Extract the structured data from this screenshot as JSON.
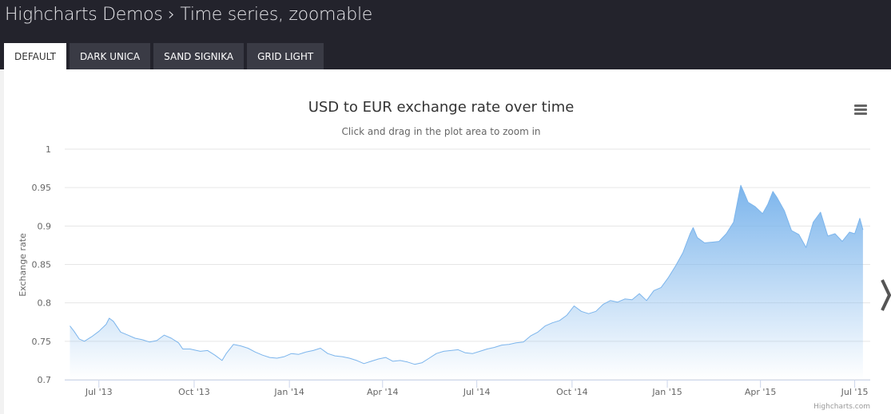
{
  "page": {
    "title": "Highcharts Demos › Time series, zoomable",
    "tabs": [
      {
        "label": "DEFAULT",
        "active": true
      },
      {
        "label": "DARK UNICA",
        "active": false
      },
      {
        "label": "SAND SIGNIKA",
        "active": false
      },
      {
        "label": "GRID LIGHT",
        "active": false
      }
    ],
    "menu_icon": "hamburger-menu-icon",
    "next_icon": "chevron-right-icon",
    "credits": "Highcharts.com",
    "colors": {
      "header_bg": "#23232c",
      "tab_bg": "#3a3b45",
      "series": "#7cb5ec",
      "grid": "#e6e6e6"
    }
  },
  "chart_data": {
    "type": "area",
    "title": "USD to EUR exchange rate over time",
    "subtitle": "Click and drag in the plot area to zoom in",
    "xlabel": "",
    "ylabel": "Exchange rate",
    "ylim": [
      0.7,
      1
    ],
    "yticks": [
      "0.7",
      "0.75",
      "0.8",
      "0.85",
      "0.9",
      "0.95",
      "1"
    ],
    "xlim": [
      "2013-05-29",
      "2015-07-16"
    ],
    "xticks": [
      {
        "date": "2013-07-01",
        "label": "Jul '13"
      },
      {
        "date": "2013-10-01",
        "label": "Oct '13"
      },
      {
        "date": "2014-01-01",
        "label": "Jan '14"
      },
      {
        "date": "2014-04-01",
        "label": "Apr '14"
      },
      {
        "date": "2014-07-01",
        "label": "Jul '14"
      },
      {
        "date": "2014-10-01",
        "label": "Oct '14"
      },
      {
        "date": "2015-01-01",
        "label": "Jan '15"
      },
      {
        "date": "2015-04-01",
        "label": "Apr '15"
      },
      {
        "date": "2015-07-01",
        "label": "Jul '15"
      }
    ],
    "grid": true,
    "legend": false,
    "series": [
      {
        "points": [
          [
            "2013-06-03",
            0.77
          ],
          [
            "2013-06-07",
            0.763
          ],
          [
            "2013-06-12",
            0.753
          ],
          [
            "2013-06-17",
            0.75
          ],
          [
            "2013-06-24",
            0.756
          ],
          [
            "2013-07-01",
            0.763
          ],
          [
            "2013-07-08",
            0.772
          ],
          [
            "2013-07-11",
            0.78
          ],
          [
            "2013-07-15",
            0.776
          ],
          [
            "2013-07-22",
            0.762
          ],
          [
            "2013-07-29",
            0.758
          ],
          [
            "2013-08-05",
            0.754
          ],
          [
            "2013-08-12",
            0.752
          ],
          [
            "2013-08-19",
            0.749
          ],
          [
            "2013-08-26",
            0.751
          ],
          [
            "2013-09-02",
            0.758
          ],
          [
            "2013-09-09",
            0.754
          ],
          [
            "2013-09-16",
            0.748
          ],
          [
            "2013-09-20",
            0.74
          ],
          [
            "2013-09-27",
            0.74
          ],
          [
            "2013-10-07",
            0.737
          ],
          [
            "2013-10-14",
            0.738
          ],
          [
            "2013-10-21",
            0.732
          ],
          [
            "2013-10-28",
            0.725
          ],
          [
            "2013-11-01",
            0.734
          ],
          [
            "2013-11-08",
            0.746
          ],
          [
            "2013-11-15",
            0.744
          ],
          [
            "2013-11-22",
            0.741
          ],
          [
            "2013-11-29",
            0.736
          ],
          [
            "2013-12-06",
            0.732
          ],
          [
            "2013-12-13",
            0.729
          ],
          [
            "2013-12-20",
            0.728
          ],
          [
            "2013-12-27",
            0.73
          ],
          [
            "2014-01-03",
            0.734
          ],
          [
            "2014-01-10",
            0.733
          ],
          [
            "2014-01-17",
            0.736
          ],
          [
            "2014-01-24",
            0.738
          ],
          [
            "2014-01-31",
            0.741
          ],
          [
            "2014-02-07",
            0.734
          ],
          [
            "2014-02-14",
            0.731
          ],
          [
            "2014-02-21",
            0.73
          ],
          [
            "2014-02-28",
            0.728
          ],
          [
            "2014-03-07",
            0.725
          ],
          [
            "2014-03-14",
            0.721
          ],
          [
            "2014-03-21",
            0.724
          ],
          [
            "2014-03-28",
            0.727
          ],
          [
            "2014-04-04",
            0.729
          ],
          [
            "2014-04-11",
            0.724
          ],
          [
            "2014-04-18",
            0.725
          ],
          [
            "2014-04-25",
            0.723
          ],
          [
            "2014-05-02",
            0.72
          ],
          [
            "2014-05-09",
            0.722
          ],
          [
            "2014-05-16",
            0.728
          ],
          [
            "2014-05-23",
            0.734
          ],
          [
            "2014-05-30",
            0.737
          ],
          [
            "2014-06-06",
            0.738
          ],
          [
            "2014-06-13",
            0.739
          ],
          [
            "2014-06-20",
            0.735
          ],
          [
            "2014-06-27",
            0.734
          ],
          [
            "2014-07-04",
            0.737
          ],
          [
            "2014-07-11",
            0.74
          ],
          [
            "2014-07-18",
            0.742
          ],
          [
            "2014-07-25",
            0.745
          ],
          [
            "2014-08-01",
            0.746
          ],
          [
            "2014-08-08",
            0.748
          ],
          [
            "2014-08-15",
            0.749
          ],
          [
            "2014-08-22",
            0.757
          ],
          [
            "2014-08-29",
            0.762
          ],
          [
            "2014-09-05",
            0.77
          ],
          [
            "2014-09-12",
            0.774
          ],
          [
            "2014-09-19",
            0.777
          ],
          [
            "2014-09-26",
            0.784
          ],
          [
            "2014-10-03",
            0.796
          ],
          [
            "2014-10-10",
            0.789
          ],
          [
            "2014-10-17",
            0.786
          ],
          [
            "2014-10-24",
            0.789
          ],
          [
            "2014-10-31",
            0.798
          ],
          [
            "2014-11-07",
            0.803
          ],
          [
            "2014-11-14",
            0.801
          ],
          [
            "2014-11-21",
            0.805
          ],
          [
            "2014-11-28",
            0.804
          ],
          [
            "2014-12-05",
            0.812
          ],
          [
            "2014-12-12",
            0.803
          ],
          [
            "2014-12-19",
            0.816
          ],
          [
            "2014-12-26",
            0.82
          ],
          [
            "2015-01-02",
            0.833
          ],
          [
            "2015-01-09",
            0.848
          ],
          [
            "2015-01-16",
            0.865
          ],
          [
            "2015-01-23",
            0.89
          ],
          [
            "2015-01-26",
            0.898
          ],
          [
            "2015-01-30",
            0.885
          ],
          [
            "2015-02-06",
            0.878
          ],
          [
            "2015-02-13",
            0.879
          ],
          [
            "2015-02-20",
            0.88
          ],
          [
            "2015-02-27",
            0.89
          ],
          [
            "2015-03-06",
            0.905
          ],
          [
            "2015-03-11",
            0.94
          ],
          [
            "2015-03-13",
            0.953
          ],
          [
            "2015-03-16",
            0.944
          ],
          [
            "2015-03-20",
            0.931
          ],
          [
            "2015-03-27",
            0.925
          ],
          [
            "2015-04-03",
            0.916
          ],
          [
            "2015-04-08",
            0.928
          ],
          [
            "2015-04-13",
            0.945
          ],
          [
            "2015-04-17",
            0.937
          ],
          [
            "2015-04-24",
            0.92
          ],
          [
            "2015-05-01",
            0.894
          ],
          [
            "2015-05-08",
            0.889
          ],
          [
            "2015-05-15",
            0.872
          ],
          [
            "2015-05-22",
            0.905
          ],
          [
            "2015-05-29",
            0.918
          ],
          [
            "2015-06-05",
            0.887
          ],
          [
            "2015-06-12",
            0.89
          ],
          [
            "2015-06-19",
            0.88
          ],
          [
            "2015-06-26",
            0.892
          ],
          [
            "2015-07-01",
            0.89
          ],
          [
            "2015-07-06",
            0.91
          ],
          [
            "2015-07-09",
            0.895
          ]
        ]
      }
    ]
  }
}
